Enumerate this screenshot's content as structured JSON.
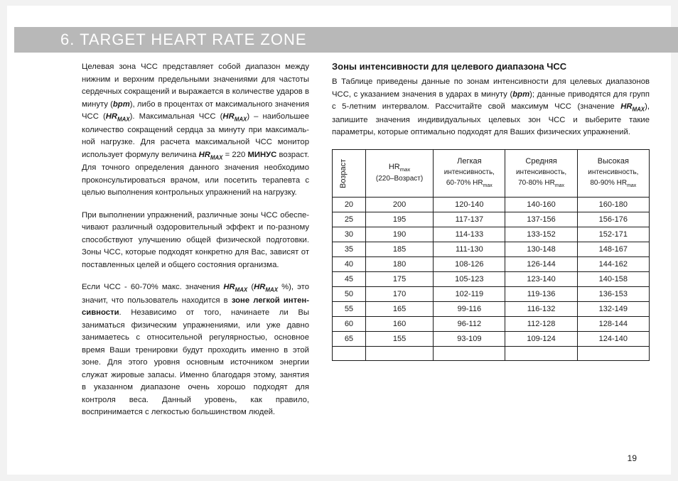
{
  "header": {
    "title": "6. TARGET HEART RATE ZONE"
  },
  "left": {
    "p1_a": "Целевая зона ЧСС представляет собой диапазон между нижним и верхним предельными значениями для частоты сердечных сокращений и выражается в количестве ударов в минуту (",
    "p1_bpm": "bpm",
    "p1_b": "), либо в процентах от максимального значения ЧСС (",
    "p1_hrmax": "HR",
    "p1_hrmax_sub": "MAX",
    "p1_c": "). Максимальная ЧСС (",
    "p1_d": ") – наибольшее коли­чество сокращений сердца за минуту при максималь­ной нагрузке. Для расчета максимальной ЧСС монитор использует формулу величина ",
    "p1_e": " = 220 ",
    "p1_minus": "МИНУС",
    "p1_f": " возраст. Для точного определения данного значения необходимо проконсультироваться врачом, или посетить терапевта  с целью выполнения контрольных упражнений на нагрузку.",
    "p2": "При выполнении упражнений, различные зоны ЧСС обеспе­чивают различный оздоровительный эффект и по-разному способствуют улучшению общей физической подготовки. Зоны ЧСС, которые подходят конкретно для Вас, зависят от поставленных целей и общего состояния организма.",
    "p3_a": "Если ЧСС - 60-70% макс. значения ",
    "p3_b": " (",
    "p3_c": " %), это значит, что пользователь находится в ",
    "p3_zone": "зоне легкой интен­сивности",
    "p3_d": ". Независимо от того, начинаете ли Вы заниматься физическим упражнениями, или уже давно занимаетесь с относительной регулярностью, основное время Ваши трени­ровки будут проходить именно в этой зоне. Для этого уровня основным источником энергии служат жировые запасы. Именно благодаря этому, занятия в указанном диапазоне очень хорошо подходят для контроля веса. Данный уровень, как правило, воспринимается с легкостью большинством людей."
  },
  "right": {
    "title": "Зоны интенсивности для целевого диапазона ЧСС",
    "intro_a": "В Таблице приведены данные по зонам интенсивности для целевых диапазонов ЧСС, с указанием значения в ударах в минуту (",
    "intro_bpm": "bpm",
    "intro_b": "); данные приводятся для групп с 5-летним интервалом. Рассчитайте свой максимум ЧСС  (значение ",
    "intro_c": "), запишите значения индивидуальных целевых зон ЧСС и выберите такие параметры, которые оптимально подходят для Ваших физических упражнений."
  },
  "table": {
    "head": {
      "age": "Возраст",
      "hrmax_a": "HR",
      "hrmax_sub": "max",
      "hrmax_b": "(220–Возраст)",
      "light_a": "Легкая",
      "light_b": "интенсивность,",
      "light_c": "60-70% HR",
      "med_a": "Средняя",
      "med_b": "интенсивность,",
      "med_c": "70-80% HR",
      "high_a": "Высокая",
      "high_b": "интенсивность,",
      "high_c": "80-90% HR"
    },
    "rows": [
      {
        "age": "20",
        "hrmax": "200",
        "light": "120-140",
        "med": "140-160",
        "high": "160-180"
      },
      {
        "age": "25",
        "hrmax": "195",
        "light": "117-137",
        "med": "137-156",
        "high": "156-176"
      },
      {
        "age": "30",
        "hrmax": "190",
        "light": "114-133",
        "med": "133-152",
        "high": "152-171"
      },
      {
        "age": "35",
        "hrmax": "185",
        "light": "111-130",
        "med": "130-148",
        "high": "148-167"
      },
      {
        "age": "40",
        "hrmax": "180",
        "light": "108-126",
        "med": "126-144",
        "high": "144-162"
      },
      {
        "age": "45",
        "hrmax": "175",
        "light": "105-123",
        "med": "123-140",
        "high": "140-158"
      },
      {
        "age": "50",
        "hrmax": "170",
        "light": "102-119",
        "med": "119-136",
        "high": "136-153"
      },
      {
        "age": "55",
        "hrmax": "165",
        "light": "99-116",
        "med": "116-132",
        "high": "132-149"
      },
      {
        "age": "60",
        "hrmax": "160",
        "light": "96-112",
        "med": "112-128",
        "high": "128-144"
      },
      {
        "age": "65",
        "hrmax": "155",
        "light": "93-109",
        "med": "109-124",
        "high": "124-140"
      }
    ]
  },
  "page_number": "19"
}
